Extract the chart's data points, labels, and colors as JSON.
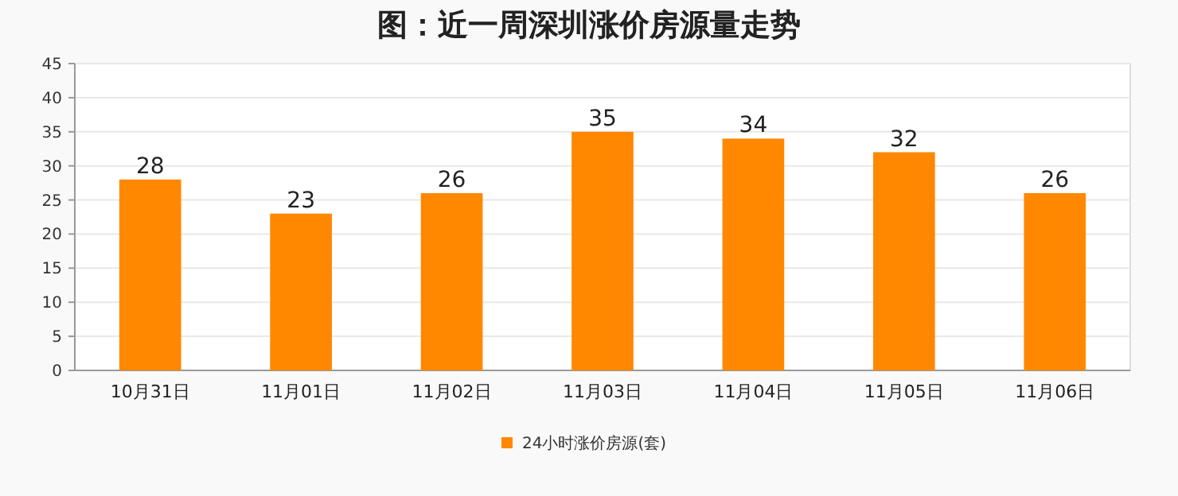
{
  "chart_data": {
    "type": "bar",
    "title": "图：近一周深圳涨价房源量走势",
    "categories": [
      "10月31日",
      "11月01日",
      "11月02日",
      "11月03日",
      "11月04日",
      "11月05日",
      "11月06日"
    ],
    "series": [
      {
        "name": "24小时涨价房源(套)",
        "color": "#ff8800",
        "values": [
          28,
          23,
          26,
          35,
          34,
          32,
          26
        ]
      }
    ],
    "ylim": [
      0,
      45
    ],
    "yticks": [
      0,
      5,
      10,
      15,
      20,
      25,
      30,
      35,
      40,
      45
    ],
    "grid": "y",
    "data_labels": true,
    "legend": "bottom"
  }
}
